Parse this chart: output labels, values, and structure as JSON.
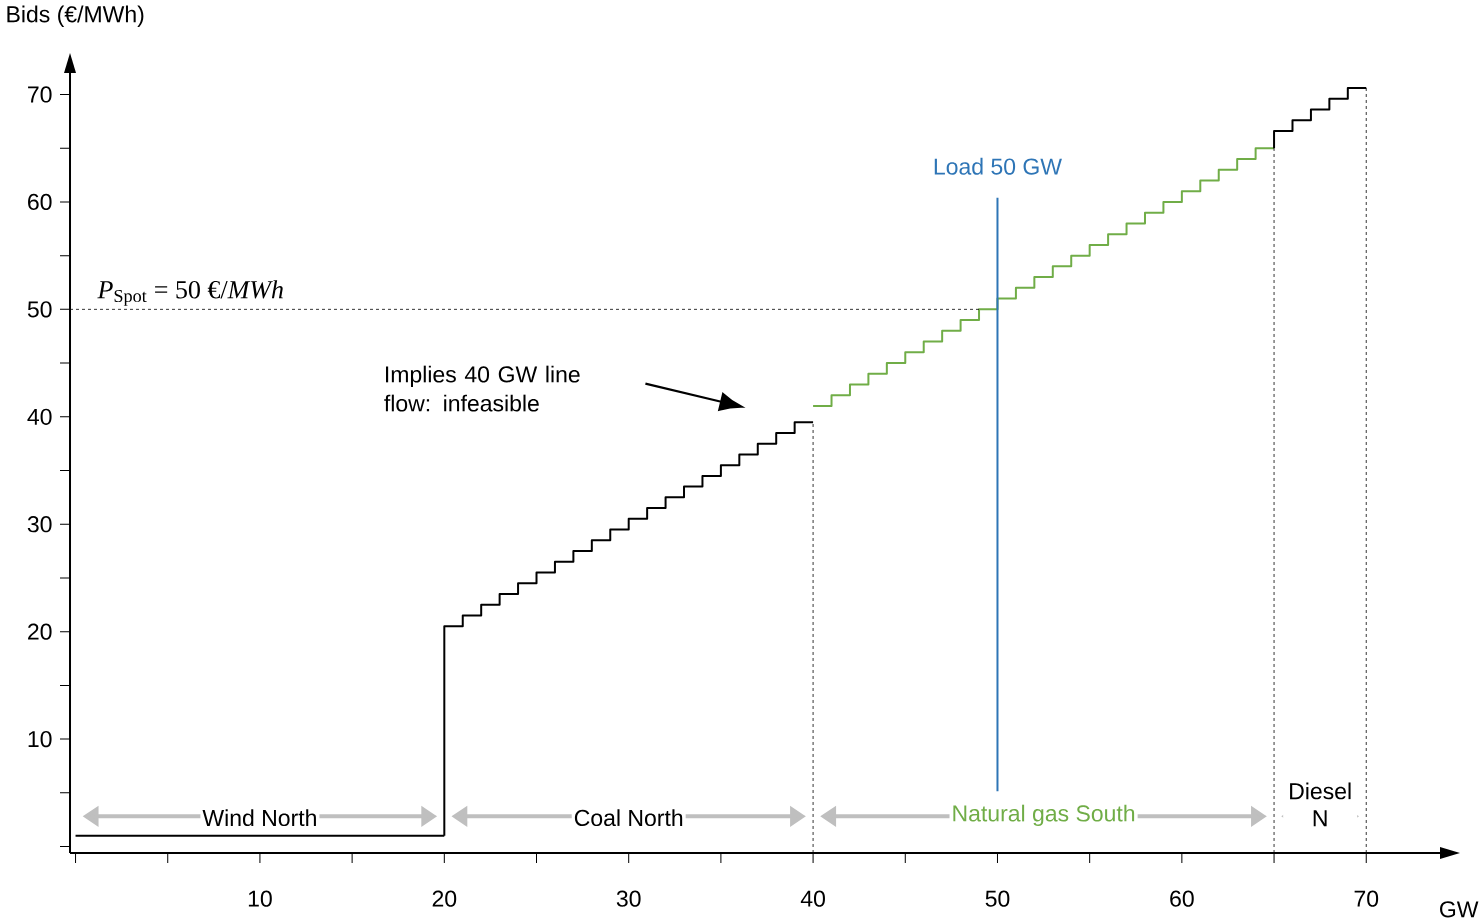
{
  "chart_data": {
    "type": "step",
    "xlabel": "GW",
    "ylabel": "Bids (€/MWh)",
    "xlim": [
      -0.3,
      74
    ],
    "ylim": [
      -0.6,
      72
    ],
    "xticks": [
      {
        "value": 0,
        "label": null
      },
      {
        "value": 5,
        "label": null
      },
      10,
      {
        "value": 15,
        "label": null
      },
      20,
      {
        "value": 25,
        "label": null
      },
      30,
      {
        "value": 35,
        "label": null
      },
      40,
      {
        "value": 45,
        "label": null
      },
      50,
      {
        "value": 55,
        "label": null
      },
      60,
      {
        "value": 65,
        "label": null
      },
      70
    ],
    "yticks": [
      {
        "value": 0,
        "label": null
      },
      {
        "value": 5,
        "label": null
      },
      10,
      {
        "value": 15,
        "label": null
      },
      20,
      {
        "value": 25,
        "label": null
      },
      30,
      {
        "value": 35,
        "label": null
      },
      40,
      {
        "value": 45,
        "label": null
      },
      50,
      {
        "value": 55,
        "label": null
      },
      60,
      {
        "value": 65,
        "label": null
      },
      70
    ],
    "series": [
      {
        "color": "#000000",
        "x": [
          0,
          20
        ],
        "values": [
          1,
          1
        ]
      },
      {
        "color": "#000000",
        "x": [
          20,
          20,
          21,
          22,
          23,
          24,
          25,
          26,
          27,
          28,
          29,
          30,
          31,
          32,
          33,
          34,
          35,
          36,
          37,
          38,
          39,
          40
        ],
        "values": [
          1,
          20.5,
          21.5,
          22.5,
          23.5,
          24.5,
          25.5,
          26.5,
          27.5,
          28.5,
          29.5,
          30.5,
          31.5,
          32.5,
          33.5,
          34.5,
          35.5,
          36.5,
          37.5,
          38.5,
          39.5,
          39.5
        ]
      },
      {
        "color": "#70ad47",
        "x": [
          40,
          41,
          42,
          43,
          44,
          45,
          46,
          47,
          48,
          49,
          50,
          51,
          52,
          53,
          54,
          55,
          56,
          57,
          58,
          59,
          60,
          61,
          62,
          63,
          64,
          65
        ],
        "values": [
          41,
          42,
          43,
          44,
          45,
          46,
          47,
          48,
          49,
          50,
          51,
          52,
          53,
          54,
          55,
          56,
          57,
          58,
          59,
          60,
          61,
          62,
          63,
          64,
          65,
          65
        ]
      },
      {
        "color": "#000000",
        "x": [
          65,
          65,
          66,
          67,
          68,
          69,
          70
        ],
        "values": [
          65,
          66.6,
          67.6,
          68.6,
          69.6,
          70.6,
          70.6
        ]
      }
    ],
    "ref_lines": [
      {
        "axis": "y",
        "value": 50,
        "label": "*P*$_{Spot}$ = 50 €/*MWh*",
        "color": "#000000",
        "line_style": "dashed"
      },
      {
        "axis": "x",
        "value": 50,
        "label": "Load 50 GW",
        "color": "#2e75b6",
        "line_style": "solid"
      },
      {
        "axis": "x",
        "value": 40,
        "color": "#000000",
        "line_style": "dashed"
      },
      {
        "axis": "x",
        "value": 65,
        "color": "#000000",
        "line_style": "dashed"
      },
      {
        "axis": "x",
        "value": 70,
        "color": "#000000",
        "line_style": "dashed"
      }
    ],
    "annotations": [
      "Wind North",
      "Coal North",
      "Natural gas South",
      "Diesel N",
      "Implies 40 GW line flow: infeasible"
    ]
  }
}
